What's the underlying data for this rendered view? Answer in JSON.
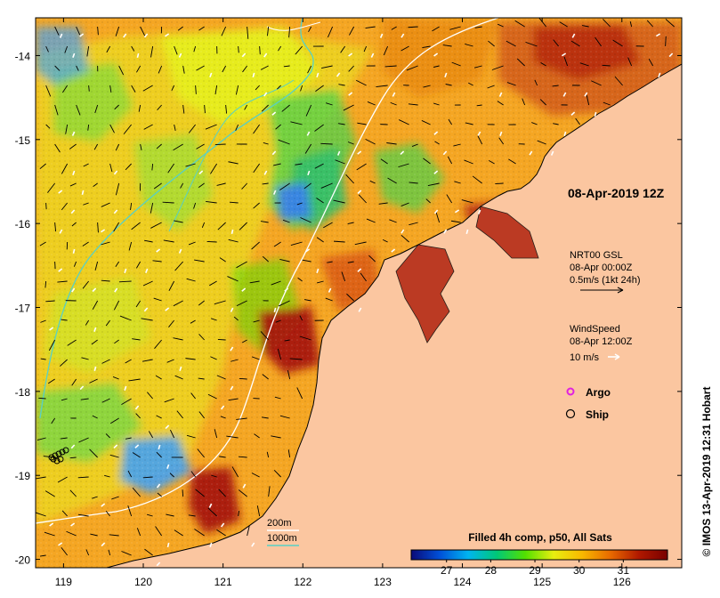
{
  "map": {
    "timestamp": "08-Apr-2019 12Z",
    "lat_ticks": [
      {
        "value": -14,
        "label": "-14"
      },
      {
        "value": -15,
        "label": "-15"
      },
      {
        "value": -16,
        "label": "-16"
      },
      {
        "value": -17,
        "label": "-17"
      },
      {
        "value": -18,
        "label": "-18"
      },
      {
        "value": -19,
        "label": "-19"
      },
      {
        "value": -20,
        "label": "-20"
      }
    ],
    "lon_ticks": [
      {
        "value": 119,
        "label": "119"
      },
      {
        "value": 120,
        "label": "120"
      },
      {
        "value": 121,
        "label": "121"
      },
      {
        "value": 122,
        "label": "122"
      },
      {
        "value": 123,
        "label": "123"
      },
      {
        "value": 124,
        "label": "124"
      },
      {
        "value": 125,
        "label": "125"
      },
      {
        "value": 126,
        "label": "126"
      }
    ],
    "lon_range": [
      118.65,
      126.75
    ],
    "lat_range": [
      -20.1,
      -13.55
    ],
    "colors": {
      "land": "#fbc6a0",
      "ocean_base": "#f5a623",
      "warm_patch": "#b0220e",
      "cool_patch": "#3aa0ff",
      "green_patch": "#4cd24c",
      "yellow_patch": "#e7ef1d",
      "contour_200m": "#ffffff",
      "contour_1000m": "#58d0c6",
      "argo_marker": "#e020e0",
      "ship_marker": "#000000"
    }
  },
  "currents_legend": {
    "line1": "NRT00 GSL",
    "line2": "08-Apr 00:00Z",
    "line3": "0.5m/s (1kt 24h)"
  },
  "wind_legend": {
    "line1": "WindSpeed",
    "line2": "08-Apr 12:00Z",
    "line3": "10 m/s"
  },
  "markers_legend": {
    "argo": "Argo",
    "ship": "Ship"
  },
  "depth_legend": {
    "d200": "200m",
    "d1000": "1000m"
  },
  "colorbar": {
    "title": "Filled 4h comp, p50, All Sats",
    "ticks": [
      {
        "value": 27,
        "label": "27"
      },
      {
        "value": 28,
        "label": "28"
      },
      {
        "value": 29,
        "label": "29"
      },
      {
        "value": 30,
        "label": "30"
      },
      {
        "value": 31,
        "label": "31"
      }
    ],
    "range": [
      26.2,
      32.0
    ],
    "stops": [
      "#0a0a78",
      "#0050d8",
      "#00b4f0",
      "#00c878",
      "#52e000",
      "#e8ee10",
      "#f8b800",
      "#e86a00",
      "#b01800",
      "#780000"
    ]
  },
  "credit": "© IMOS 13-Apr-2019 12:31 Hobart"
}
